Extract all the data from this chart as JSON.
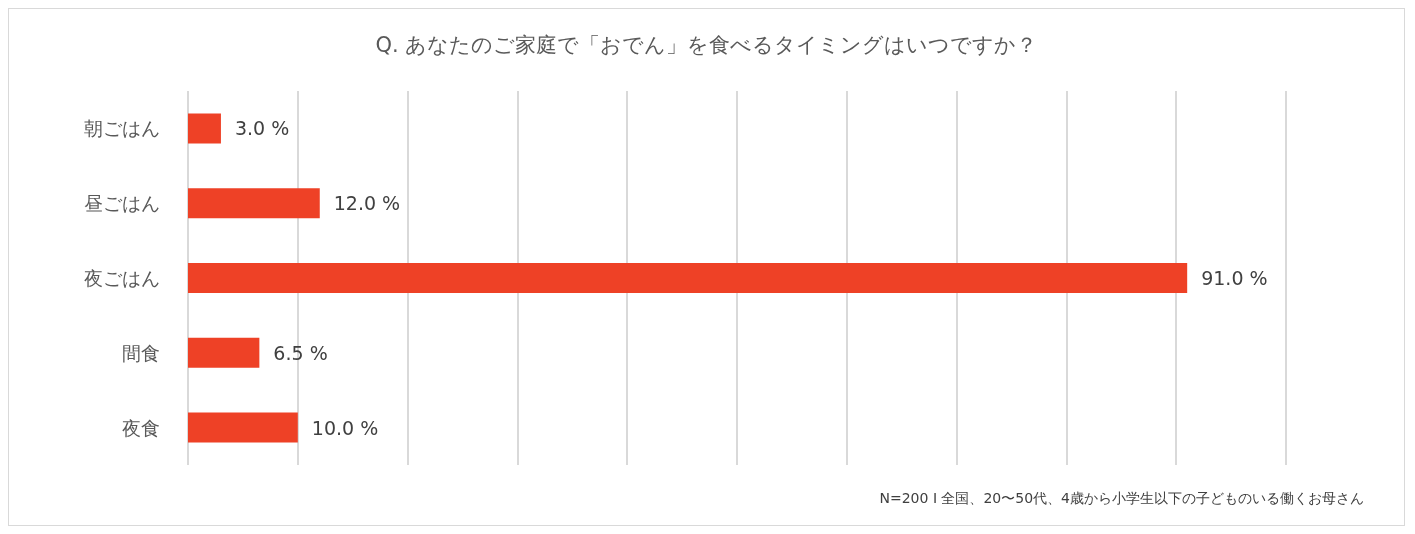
{
  "chart_data": {
    "type": "bar",
    "orientation": "horizontal",
    "title": "Q. あなたのご家庭で「おでん」を食べるタイミングはいつですか？",
    "categories": [
      "朝ごはん",
      "昼ごはん",
      "夜ごはん",
      "間食",
      "夜食"
    ],
    "values": [
      3.0,
      12.0,
      91.0,
      6.5,
      10.0
    ],
    "value_labels": [
      "3.0 %",
      "12.0 %",
      "91.0 %",
      "6.5 %",
      "10.0 %"
    ],
    "color": "#ee4126",
    "xlim": [
      0,
      100
    ],
    "xticks": [
      {
        "value": 0,
        "label": null
      },
      {
        "value": 10,
        "label": null
      },
      {
        "value": 20,
        "label": null
      },
      {
        "value": 30,
        "label": null
      },
      {
        "value": 40,
        "label": null
      },
      {
        "value": 50,
        "label": null
      },
      {
        "value": 60,
        "label": null
      },
      {
        "value": 70,
        "label": null
      },
      {
        "value": 80,
        "label": null
      },
      {
        "value": 90,
        "label": null
      },
      {
        "value": 100,
        "label": null
      }
    ],
    "tick_labels": "y",
    "grid": "x",
    "annotations": [
      "N=200 I 全国、20〜50代、4歳から小学生以下の子どものいる働くお母さん"
    ]
  }
}
